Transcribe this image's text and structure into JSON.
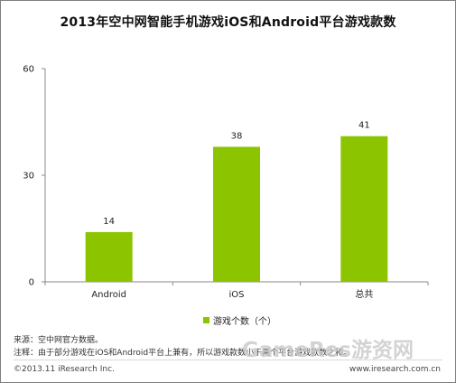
{
  "chart_data": {
    "type": "bar",
    "title": "2013年空中网智能手机游戏iOS和Android平台游戏款数",
    "categories": [
      "Android",
      "iOS",
      "总共"
    ],
    "series": [
      {
        "name": "游戏个数（个）",
        "values": [
          14,
          38,
          41
        ]
      }
    ],
    "ylim": [
      0,
      60
    ],
    "yticks": [
      "0",
      "30",
      "60"
    ],
    "value_labels": [
      "14",
      "38",
      "41"
    ],
    "grid": false,
    "legend_position": "bottom",
    "bar_color": "#8cc500"
  },
  "footer": {
    "source": "来源：空中网官方数据。",
    "note": "注释：由于部分游戏在iOS和Android平台上兼有，所以游戏款数小于两个平台游戏款数之和。",
    "copyright": "©2013.11 iResearch Inc.",
    "website": "www.iresearch.com.cn"
  },
  "watermark": "GameRes游资网"
}
